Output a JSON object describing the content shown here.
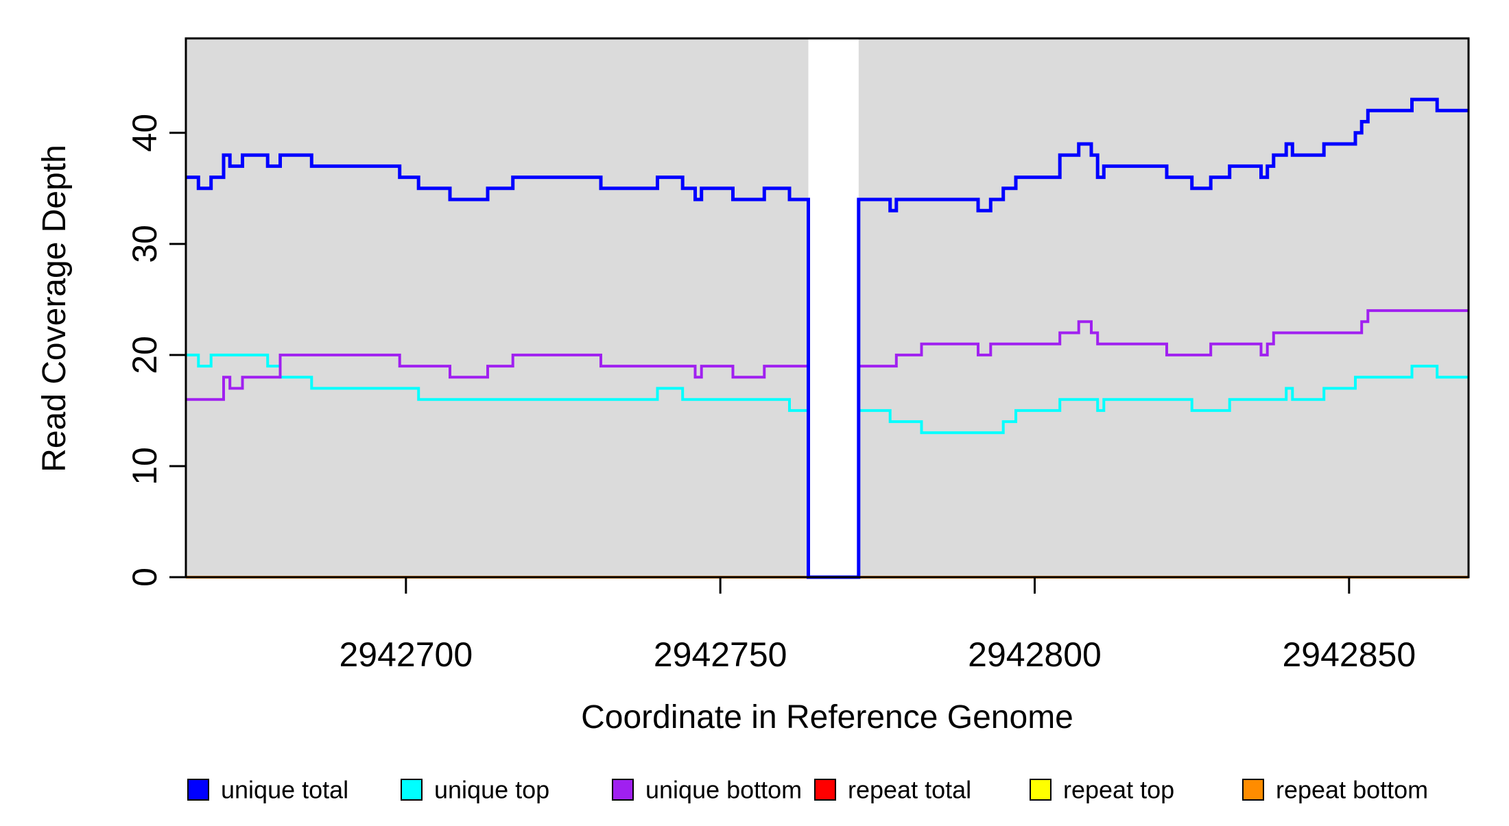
{
  "chart_data": {
    "type": "line",
    "subtype": "step",
    "title": "",
    "xlabel": "Coordinate in Reference Genome",
    "ylabel": "Read Coverage Depth",
    "xlim": [
      2942665,
      2942869
    ],
    "ylim": [
      0,
      48.5
    ],
    "x_ticks": [
      2942700,
      2942750,
      2942800,
      2942850
    ],
    "x_tick_labels": [
      "2942700",
      "2942750",
      "2942800",
      "2942850"
    ],
    "y_ticks": [
      0,
      10,
      20,
      30,
      40
    ],
    "y_tick_labels": [
      "0",
      "10",
      "20",
      "30",
      "40"
    ],
    "grid": false,
    "plot_bg": "#DBDBDB",
    "outer_bg": "#FFFFFF",
    "box_color": "#000000",
    "gap_region": {
      "x_start": 2942764,
      "x_end": 2942772,
      "fill": "#FFFFFF"
    },
    "legend_position": "bottom",
    "series": [
      {
        "name": "repeat total",
        "color": "#FF0000",
        "width": 4,
        "breakpoints": [
          [
            2942665,
            0
          ],
          [
            2942764,
            null
          ],
          [
            2942772,
            0
          ]
        ]
      },
      {
        "name": "repeat top",
        "color": "#FFFF00",
        "width": 4,
        "breakpoints": [
          [
            2942665,
            0
          ],
          [
            2942764,
            null
          ],
          [
            2942772,
            0
          ]
        ]
      },
      {
        "name": "repeat bottom",
        "color": "#FF8C00",
        "width": 4,
        "breakpoints": [
          [
            2942665,
            0
          ],
          [
            2942764,
            null
          ],
          [
            2942772,
            0
          ]
        ]
      },
      {
        "name": "unique top",
        "color": "#00FFFF",
        "width": 4,
        "breakpoints": [
          [
            2942665,
            20
          ],
          [
            2942667,
            19
          ],
          [
            2942669,
            20
          ],
          [
            2942678,
            19
          ],
          [
            2942680,
            18
          ],
          [
            2942685,
            17
          ],
          [
            2942702,
            16
          ],
          [
            2942740,
            17
          ],
          [
            2942744,
            16
          ],
          [
            2942761,
            15
          ],
          [
            2942764,
            0
          ],
          [
            2942772,
            15
          ],
          [
            2942777,
            14
          ],
          [
            2942782,
            13
          ],
          [
            2942795,
            14
          ],
          [
            2942797,
            15
          ],
          [
            2942804,
            16
          ],
          [
            2942810,
            15
          ],
          [
            2942811,
            16
          ],
          [
            2942825,
            15
          ],
          [
            2942831,
            16
          ],
          [
            2942840,
            17
          ],
          [
            2942841,
            16
          ],
          [
            2942846,
            17
          ],
          [
            2942851,
            18
          ],
          [
            2942860,
            19
          ],
          [
            2942864,
            18
          ]
        ]
      },
      {
        "name": "unique bottom",
        "color": "#A020F0",
        "width": 4,
        "breakpoints": [
          [
            2942665,
            16
          ],
          [
            2942671,
            18
          ],
          [
            2942672,
            17
          ],
          [
            2942674,
            18
          ],
          [
            2942680,
            20
          ],
          [
            2942699,
            19
          ],
          [
            2942707,
            18
          ],
          [
            2942713,
            19
          ],
          [
            2942717,
            20
          ],
          [
            2942731,
            19
          ],
          [
            2942746,
            18
          ],
          [
            2942747,
            19
          ],
          [
            2942752,
            18
          ],
          [
            2942757,
            19
          ],
          [
            2942764,
            0
          ],
          [
            2942772,
            19
          ],
          [
            2942778,
            20
          ],
          [
            2942782,
            21
          ],
          [
            2942791,
            20
          ],
          [
            2942793,
            21
          ],
          [
            2942804,
            22
          ],
          [
            2942807,
            23
          ],
          [
            2942809,
            22
          ],
          [
            2942810,
            21
          ],
          [
            2942821,
            20
          ],
          [
            2942828,
            21
          ],
          [
            2942836,
            20
          ],
          [
            2942837,
            21
          ],
          [
            2942838,
            22
          ],
          [
            2942852,
            23
          ],
          [
            2942853,
            24
          ]
        ]
      },
      {
        "name": "unique total",
        "color": "#0000FF",
        "width": 5,
        "breakpoints": [
          [
            2942665,
            36
          ],
          [
            2942667,
            35
          ],
          [
            2942669,
            36
          ],
          [
            2942671,
            38
          ],
          [
            2942672,
            37
          ],
          [
            2942674,
            38
          ],
          [
            2942678,
            37
          ],
          [
            2942680,
            38
          ],
          [
            2942685,
            37
          ],
          [
            2942699,
            36
          ],
          [
            2942702,
            35
          ],
          [
            2942707,
            34
          ],
          [
            2942713,
            35
          ],
          [
            2942717,
            36
          ],
          [
            2942731,
            35
          ],
          [
            2942740,
            36
          ],
          [
            2942744,
            35
          ],
          [
            2942746,
            34
          ],
          [
            2942747,
            35
          ],
          [
            2942752,
            34
          ],
          [
            2942757,
            35
          ],
          [
            2942761,
            34
          ],
          [
            2942764,
            0
          ],
          [
            2942772,
            34
          ],
          [
            2942777,
            33
          ],
          [
            2942778,
            34
          ],
          [
            2942791,
            33
          ],
          [
            2942793,
            34
          ],
          [
            2942795,
            35
          ],
          [
            2942797,
            36
          ],
          [
            2942804,
            38
          ],
          [
            2942807,
            39
          ],
          [
            2942809,
            38
          ],
          [
            2942810,
            36
          ],
          [
            2942811,
            37
          ],
          [
            2942821,
            36
          ],
          [
            2942825,
            35
          ],
          [
            2942828,
            36
          ],
          [
            2942831,
            37
          ],
          [
            2942836,
            36
          ],
          [
            2942837,
            37
          ],
          [
            2942838,
            38
          ],
          [
            2942840,
            39
          ],
          [
            2942841,
            38
          ],
          [
            2942846,
            39
          ],
          [
            2942851,
            40
          ],
          [
            2942852,
            41
          ],
          [
            2942853,
            42
          ],
          [
            2942860,
            43
          ],
          [
            2942864,
            42
          ]
        ]
      }
    ]
  },
  "legend": {
    "items": [
      {
        "label": "unique total",
        "color": "#0000FF"
      },
      {
        "label": "unique top",
        "color": "#00FFFF"
      },
      {
        "label": "unique bottom",
        "color": "#A020F0"
      },
      {
        "label": "repeat total",
        "color": "#FF0000"
      },
      {
        "label": "repeat top",
        "color": "#FFFF00"
      },
      {
        "label": "repeat bottom",
        "color": "#FF8C00"
      }
    ]
  },
  "axes": {
    "x_title": "Coordinate in Reference Genome",
    "y_title": "Read Coverage Depth"
  }
}
